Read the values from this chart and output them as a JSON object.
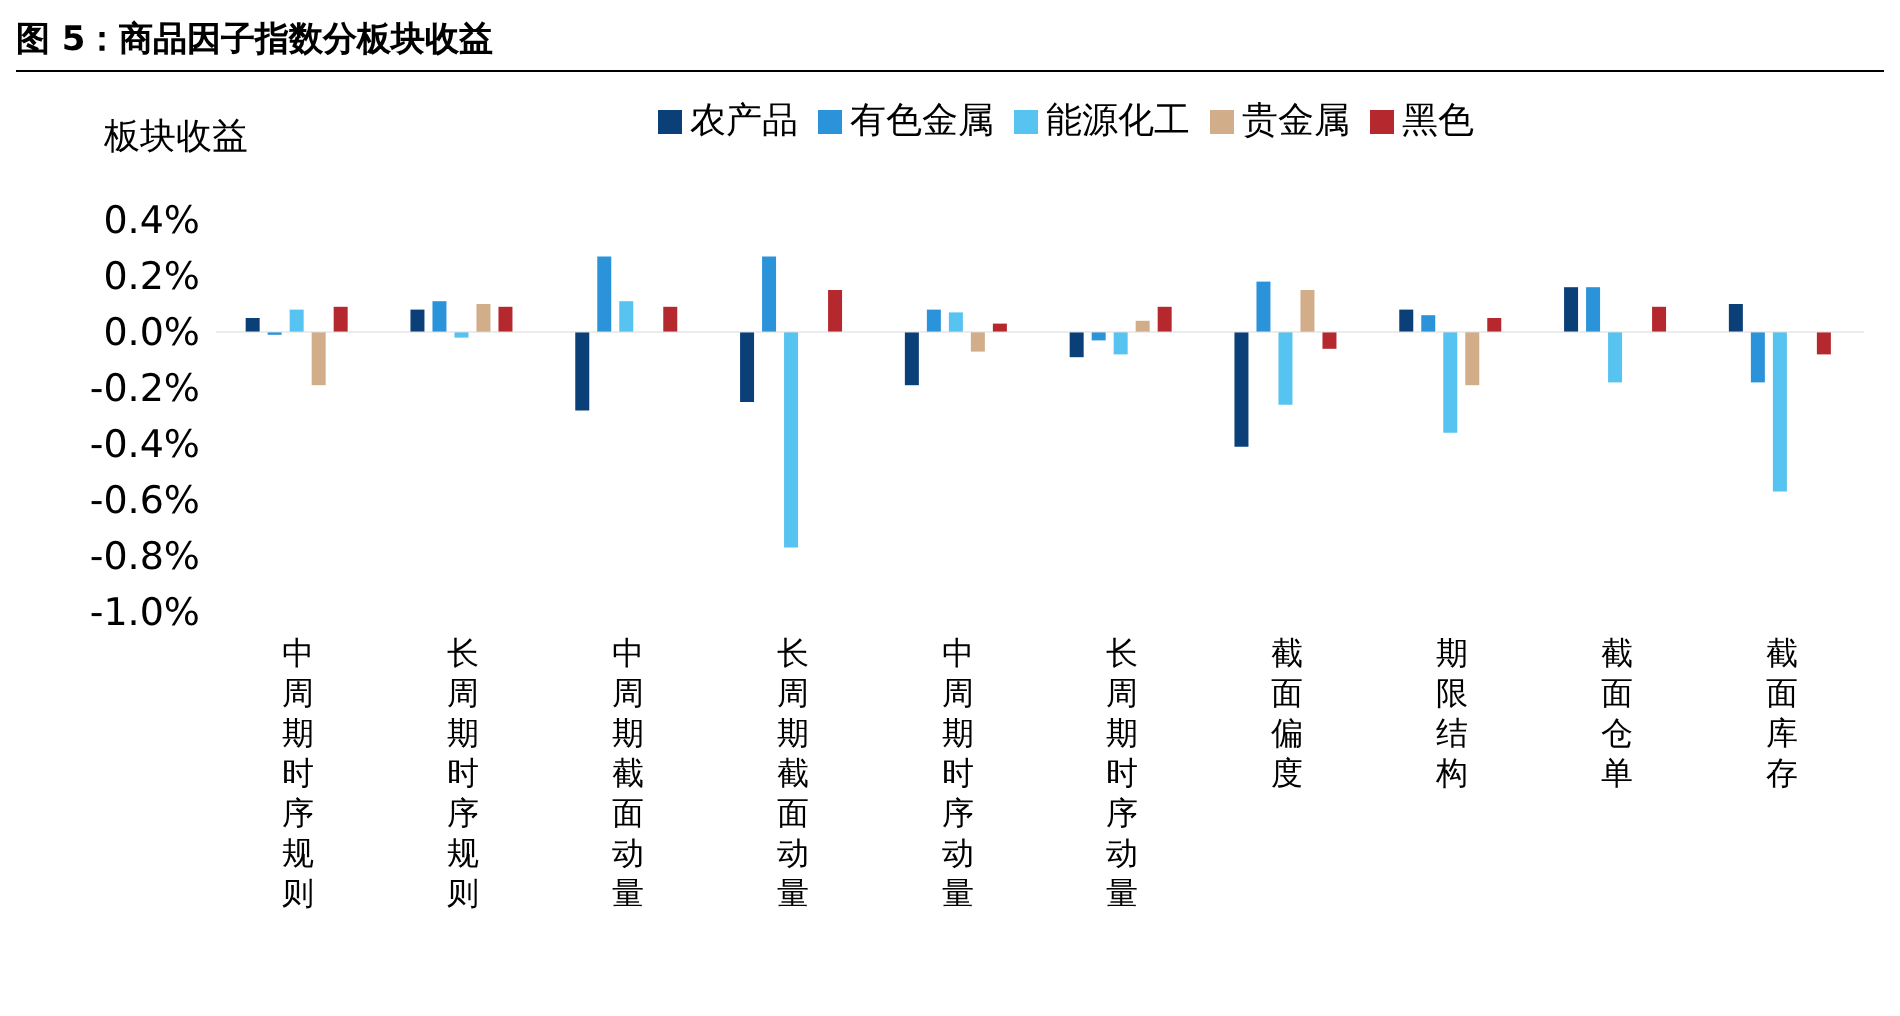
{
  "chart_data": {
    "type": "bar",
    "title": "图 5：商品因子指数分板块收益",
    "ylabel": "板块收益",
    "categories": [
      "中周期时序规则",
      "长周期时序规则",
      "中周期截面动量",
      "长周期截面动量",
      "中周期时序动量",
      "长周期时序动量",
      "截面偏度",
      "期限结构",
      "截面仓单",
      "截面库存"
    ],
    "series": [
      {
        "name": "农产品",
        "color": "#0b3f78",
        "values": [
          0.05,
          0.08,
          -0.28,
          -0.25,
          -0.19,
          -0.09,
          -0.41,
          0.08,
          0.16,
          0.1
        ]
      },
      {
        "name": "有色金属",
        "color": "#2b93d9",
        "values": [
          -0.01,
          0.11,
          0.27,
          0.27,
          0.08,
          -0.03,
          0.18,
          0.06,
          0.16,
          -0.18
        ]
      },
      {
        "name": "能源化工",
        "color": "#56c3f0",
        "values": [
          0.08,
          -0.02,
          0.11,
          -0.77,
          0.07,
          -0.08,
          -0.26,
          -0.36,
          -0.18,
          -0.57
        ]
      },
      {
        "name": "贵金属",
        "color": "#d2ad8a",
        "values": [
          -0.19,
          0.1,
          null,
          null,
          -0.07,
          0.04,
          0.15,
          -0.19,
          null,
          null
        ]
      },
      {
        "name": "黑色",
        "color": "#b5282e",
        "values": [
          0.09,
          0.09,
          0.09,
          0.15,
          0.03,
          0.09,
          -0.06,
          0.05,
          0.09,
          -0.08
        ]
      }
    ],
    "ylim": [
      -1.0,
      0.4
    ],
    "yticks": [
      {
        "value": 0.4,
        "label": "0.4%"
      },
      {
        "value": 0.2,
        "label": "0.2%"
      },
      {
        "value": 0,
        "label": "0.0%"
      },
      {
        "value": -0.2,
        "label": "-0.2%"
      },
      {
        "value": -0.4,
        "label": "-0.4%"
      },
      {
        "value": -0.6,
        "label": "-0.6%"
      },
      {
        "value": -0.8,
        "label": "-0.8%"
      },
      {
        "value": -1.0,
        "label": "-1.0%"
      }
    ],
    "ref_lines": [
      {
        "axis": "y",
        "value": 0,
        "color": "#d9d9d9"
      }
    ],
    "grid": false,
    "legend": "top"
  }
}
